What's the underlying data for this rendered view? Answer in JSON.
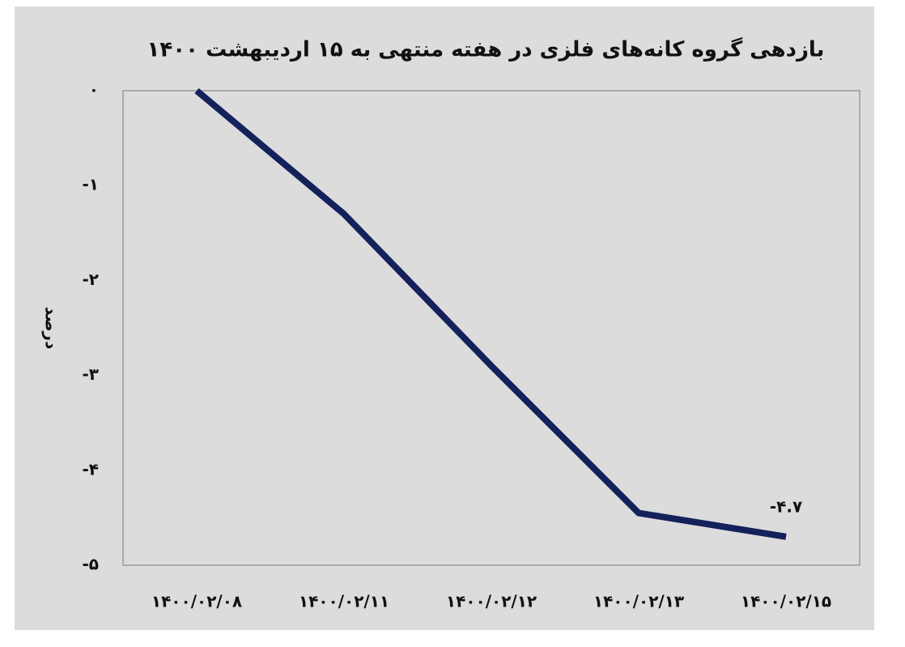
{
  "chart_data": {
    "type": "line",
    "title": "بازدهی گروه کانه‌های فلزی در هفته منتهی به ۱۵ اردیبهشت ۱۴۰۰",
    "y_label": "درصد",
    "categories": [
      "۱۴۰۰/۰۲/۰۸",
      "۱۴۰۰/۰۲/۱۱",
      "۱۴۰۰/۰۲/۱۲",
      "۱۴۰۰/۰۲/۱۳",
      "۱۴۰۰/۰۲/۱۵"
    ],
    "series": [
      {
        "color": "#14215a",
        "values": [
          0,
          -1.3,
          -2.9,
          -4.45,
          -4.7
        ],
        "value_labels": [
          null,
          null,
          null,
          null,
          "-۴.۷"
        ]
      }
    ],
    "ylim": [
      -5,
      0
    ],
    "yticks": [
      {
        "value": 0,
        "label": "۰"
      },
      {
        "value": -1,
        "label": "-۱"
      },
      {
        "value": -2,
        "label": "-۲"
      },
      {
        "value": -3,
        "label": "-۳"
      },
      {
        "value": -4,
        "label": "-۴"
      },
      {
        "value": -5,
        "label": "-۵"
      }
    ],
    "grid": false
  }
}
